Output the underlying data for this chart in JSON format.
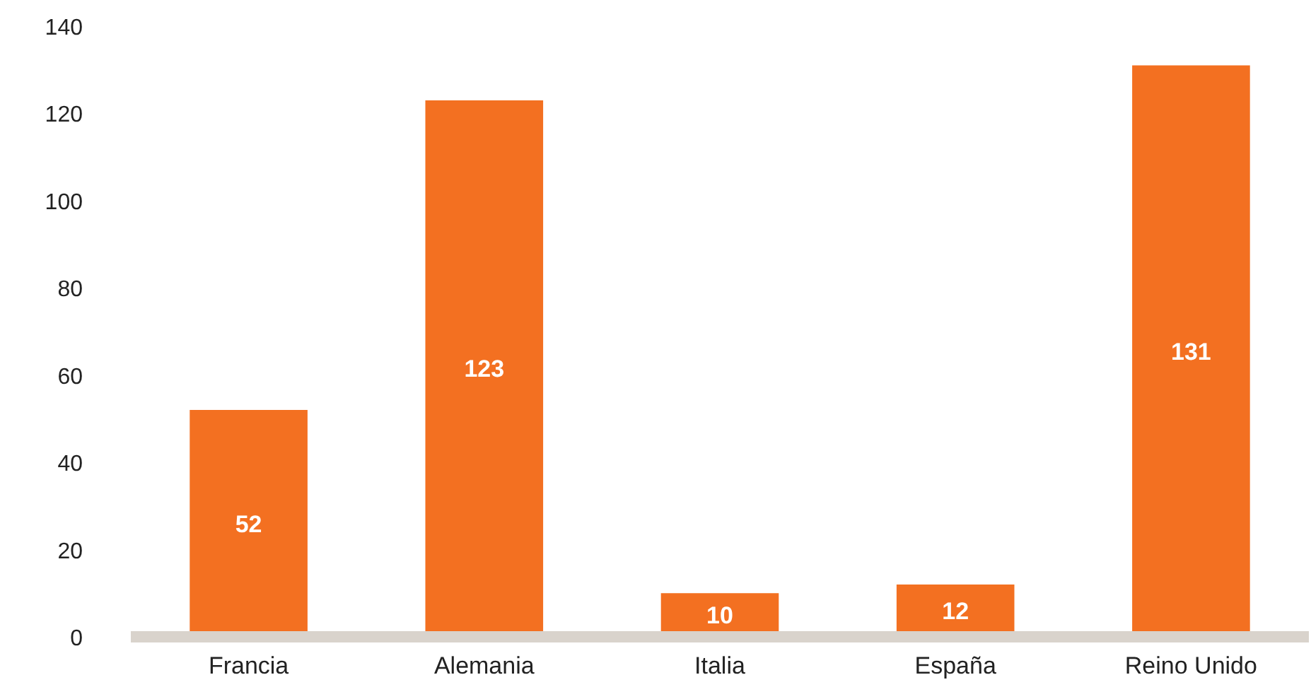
{
  "chart_data": {
    "type": "bar",
    "categories": [
      "Francia",
      "Alemania",
      "Italia",
      "España",
      "Reino Unido"
    ],
    "values": [
      52,
      123,
      10,
      12,
      131
    ],
    "color": "#f37021",
    "ylim": [
      0,
      140
    ],
    "yticks": [
      0,
      20,
      40,
      60,
      80,
      100,
      120,
      140
    ],
    "grid": false,
    "data_labels": true
  }
}
